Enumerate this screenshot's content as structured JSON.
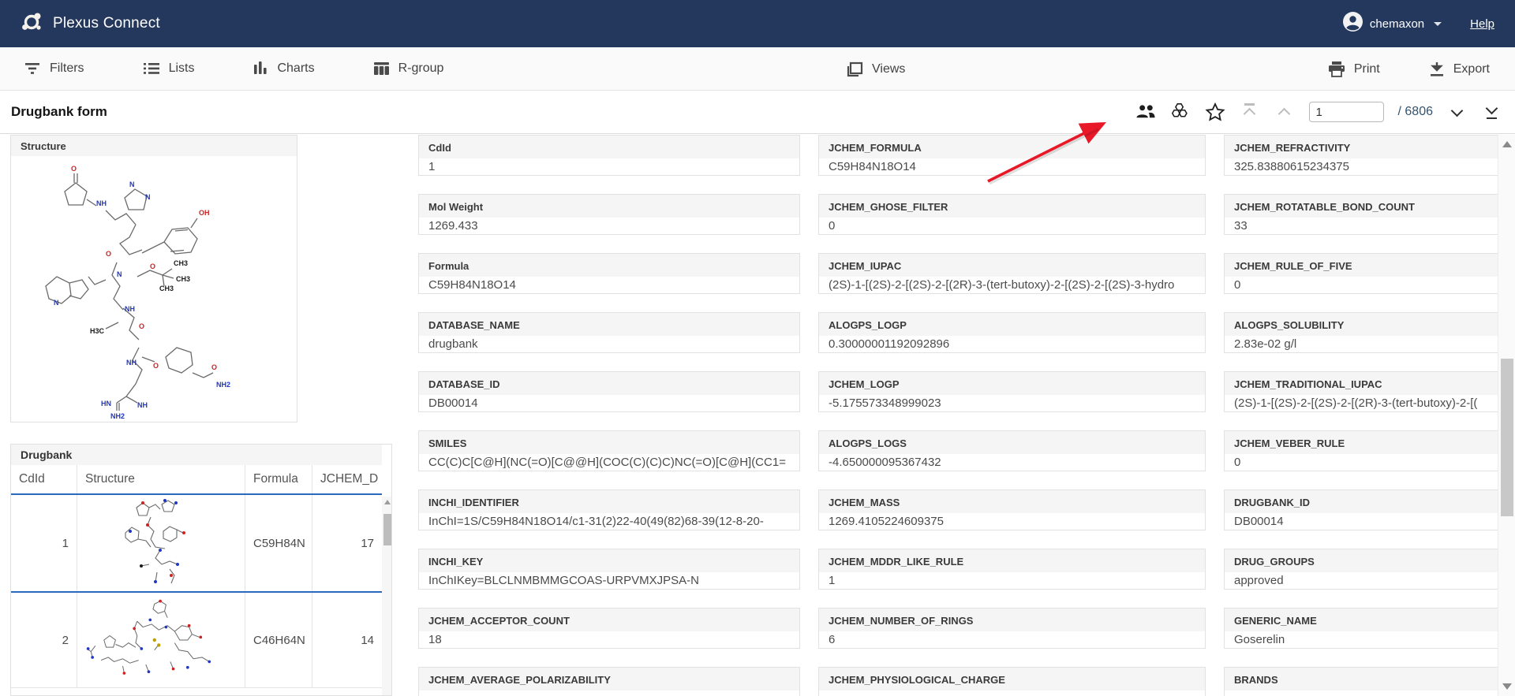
{
  "navbar": {
    "app_title": "Plexus Connect",
    "user_name": "chemaxon",
    "help_label": "Help"
  },
  "toolbar": {
    "filters_label": "Filters",
    "lists_label": "Lists",
    "charts_label": "Charts",
    "rgroup_label": "R-group",
    "views_label": "Views",
    "print_label": "Print",
    "export_label": "Export"
  },
  "form_header": {
    "title": "Drugbank form",
    "record_input_value": "1",
    "record_total_label": "/ 6806"
  },
  "structure_panel": {
    "title": "Structure"
  },
  "drugbank_grid": {
    "title": "Drugbank",
    "columns": [
      "CdId",
      "Structure",
      "Formula",
      "JCHEM_D"
    ],
    "rows": [
      {
        "cdid": "1",
        "formula": "C59H84N",
        "jchem_d": "17"
      },
      {
        "cdid": "2",
        "formula": "C46H64N",
        "jchem_d": "14"
      }
    ]
  },
  "form": {
    "columns": [
      {
        "fields": [
          {
            "label": "CdId",
            "value": "1"
          },
          {
            "label": "Mol Weight",
            "value": "1269.433"
          },
          {
            "label": "Formula",
            "value": "C59H84N18O14"
          },
          {
            "label": "DATABASE_NAME",
            "value": "drugbank"
          },
          {
            "label": "DATABASE_ID",
            "value": "DB00014"
          },
          {
            "label": "SMILES",
            "value": "CC(C)C[C@H](NC(=O)[C@@H](COC(C)(C)C)NC(=O)[C@H](CC1="
          },
          {
            "label": "INCHI_IDENTIFIER",
            "value": "InChI=1S/C59H84N18O14/c1-31(2)22-40(49(82)68-39(12-8-20-"
          },
          {
            "label": "INCHI_KEY",
            "value": "InChIKey=BLCLNMBMMGCOAS-URPVMXJPSA-N"
          },
          {
            "label": "JCHEM_ACCEPTOR_COUNT",
            "value": "18"
          },
          {
            "label": "JCHEM_AVERAGE_POLARIZABILITY",
            "value": ""
          }
        ]
      },
      {
        "fields": [
          {
            "label": "JCHEM_FORMULA",
            "value": "C59H84N18O14"
          },
          {
            "label": "JCHEM_GHOSE_FILTER",
            "value": "0"
          },
          {
            "label": "JCHEM_IUPAC",
            "value": "(2S)-1-[(2S)-2-[(2S)-2-[(2R)-3-(tert-butoxy)-2-[(2S)-2-[(2S)-3-hydro"
          },
          {
            "label": "ALOGPS_LOGP",
            "value": "0.30000001192092896"
          },
          {
            "label": "JCHEM_LOGP",
            "value": "-5.175573348999023"
          },
          {
            "label": "ALOGPS_LOGS",
            "value": "-4.650000095367432"
          },
          {
            "label": "JCHEM_MASS",
            "value": "1269.4105224609375"
          },
          {
            "label": "JCHEM_MDDR_LIKE_RULE",
            "value": "1"
          },
          {
            "label": "JCHEM_NUMBER_OF_RINGS",
            "value": "6"
          },
          {
            "label": "JCHEM_PHYSIOLOGICAL_CHARGE",
            "value": ""
          }
        ]
      },
      {
        "fields": [
          {
            "label": "JCHEM_REFRACTIVITY",
            "value": "325.83880615234375"
          },
          {
            "label": "JCHEM_ROTATABLE_BOND_COUNT",
            "value": "33"
          },
          {
            "label": "JCHEM_RULE_OF_FIVE",
            "value": "0"
          },
          {
            "label": "ALOGPS_SOLUBILITY",
            "value": "2.83e-02 g/l"
          },
          {
            "label": "JCHEM_TRADITIONAL_IUPAC",
            "value": "(2S)-1-[(2S)-2-[(2S)-2-[(2R)-3-(tert-butoxy)-2-[("
          },
          {
            "label": "JCHEM_VEBER_RULE",
            "value": "0"
          },
          {
            "label": "DRUGBANK_ID",
            "value": "DB00014"
          },
          {
            "label": "DRUG_GROUPS",
            "value": "approved"
          },
          {
            "label": "GENERIC_NAME",
            "value": "Goserelin"
          },
          {
            "label": "BRANDS",
            "value": ""
          }
        ]
      }
    ]
  },
  "colors": {
    "navbar_bg": "#24375c",
    "selection_blue": "#2a69bd",
    "arrow_red": "#e81123",
    "atom_o_red": "#cc2222",
    "atom_n_blue": "#2036c4",
    "atom_s_yellow": "#b8a000"
  }
}
